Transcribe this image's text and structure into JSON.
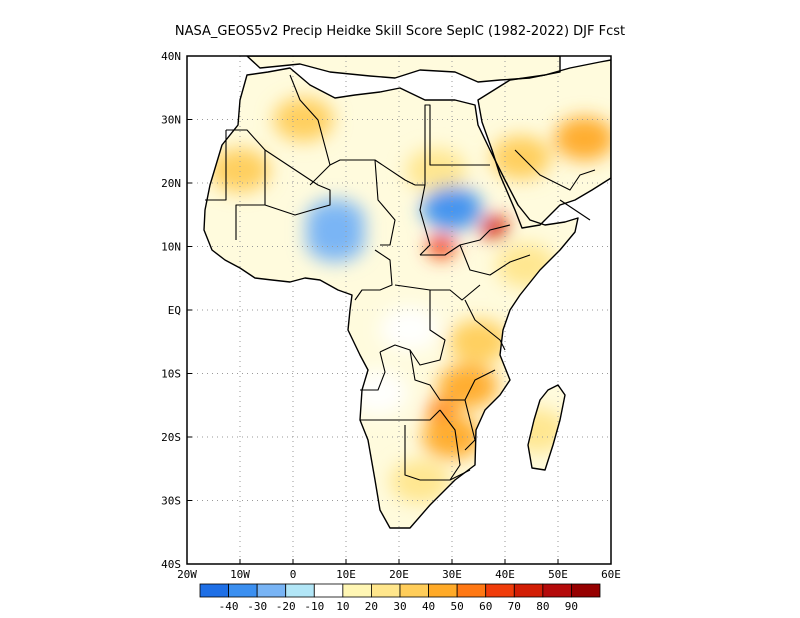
{
  "title": "NASA_GEOS5v2 Precip Heidke Skill Score SepIC (1982-2022) DJF Fcst",
  "map": {
    "lon_range": [
      -20,
      60
    ],
    "lat_range": [
      -40,
      40
    ],
    "lon_ticks": [
      "20W",
      "10W",
      "0",
      "10E",
      "20E",
      "30E",
      "40E",
      "50E",
      "60E"
    ],
    "lat_ticks": [
      "40N",
      "30N",
      "20N",
      "10N",
      "EQ",
      "10S",
      "20S",
      "30S",
      "40S"
    ],
    "gridlines": "dotted",
    "land_color": "#ffffff",
    "coast_color": "#000000"
  },
  "colorbar": {
    "labels": [
      "-40",
      "-30",
      "-20",
      "-10",
      "10",
      "20",
      "30",
      "40",
      "50",
      "60",
      "70",
      "80",
      "90"
    ],
    "colors": [
      "#1e6fe6",
      "#3b8ff0",
      "#78b4f5",
      "#b2e6f7",
      "#ffffff",
      "#fff6b4",
      "#ffe68c",
      "#ffcd5a",
      "#ffaa28",
      "#ff7814",
      "#f03c0a",
      "#d21e05",
      "#b40a0a",
      "#960000"
    ]
  },
  "skill_regions": [
    {
      "region": "northwest-africa",
      "lon": -10,
      "lat": 22,
      "value": 30
    },
    {
      "region": "algeria",
      "lon": 2,
      "lat": 30,
      "value": 30
    },
    {
      "region": "egypt-sudan",
      "lon": 27,
      "lat": 22,
      "value": 20
    },
    {
      "region": "niger-chad",
      "lon": 8,
      "lat": 14,
      "value": -30
    },
    {
      "region": "nigeria",
      "lon": 8,
      "lat": 11,
      "value": -30
    },
    {
      "region": "sudan",
      "lon": 30,
      "lat": 16,
      "value": -40
    },
    {
      "region": "ethiopia-highlands",
      "lon": 38,
      "lat": 13,
      "value": 70
    },
    {
      "region": "south-sudan",
      "lon": 28,
      "lat": 10,
      "value": 60
    },
    {
      "region": "arabia-east",
      "lon": 55,
      "lat": 27,
      "value": 40
    },
    {
      "region": "arabia-west",
      "lon": 43,
      "lat": 24,
      "value": 30
    },
    {
      "region": "horn-of-africa",
      "lon": 44,
      "lat": 7,
      "value": 20
    },
    {
      "region": "congo-basin",
      "lon": 22,
      "lat": -3,
      "value": -10
    },
    {
      "region": "east-africa",
      "lon": 35,
      "lat": -5,
      "value": 30
    },
    {
      "region": "malawi-mozambique",
      "lon": 33,
      "lat": -12,
      "value": 40
    },
    {
      "region": "zambia-south",
      "lon": 28,
      "lat": -16,
      "value": 50
    },
    {
      "region": "zimbabwe",
      "lon": 30,
      "lat": -20,
      "value": 40
    },
    {
      "region": "southern-africa",
      "lon": 24,
      "lat": -27,
      "value": 20
    },
    {
      "region": "angola",
      "lon": 16,
      "lat": -13,
      "value": -10
    },
    {
      "region": "madagascar",
      "lon": 46,
      "lat": -19,
      "value": 20
    }
  ]
}
